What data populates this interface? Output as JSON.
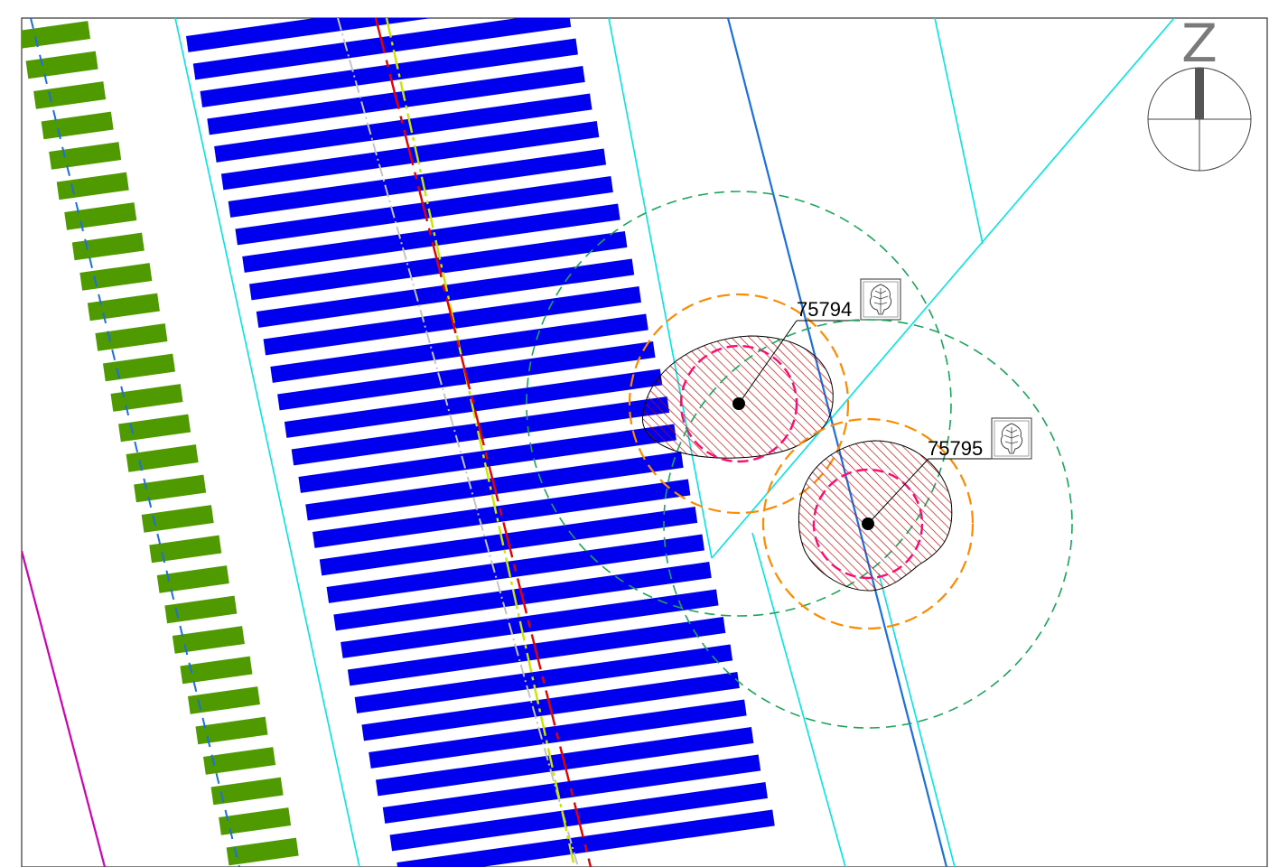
{
  "plan": {
    "north_arrow": {
      "letter": "Z"
    },
    "trees": [
      {
        "id": "75794",
        "icon": "tree-symbol-icon"
      },
      {
        "id": "75795",
        "icon": "tree-symbol-icon"
      }
    ],
    "colors": {
      "frame": "#333333",
      "track_sleepers": "#0000ee",
      "green_sleepers": "#4f9a00",
      "cyan_lines": "#00e6e6",
      "blue_line": "#1b6fe0",
      "magenta_line": "#d100b4",
      "red_dash_line": "#e60000",
      "yellow_green_line": "#c8e600",
      "grey_line": "#b8b8b8",
      "root_zone_fill": "#cc0000",
      "orange_circle": "#ff8a00",
      "pink_circle": "#ff0a6e",
      "green_dashed_circle": "#1aa55a"
    }
  }
}
